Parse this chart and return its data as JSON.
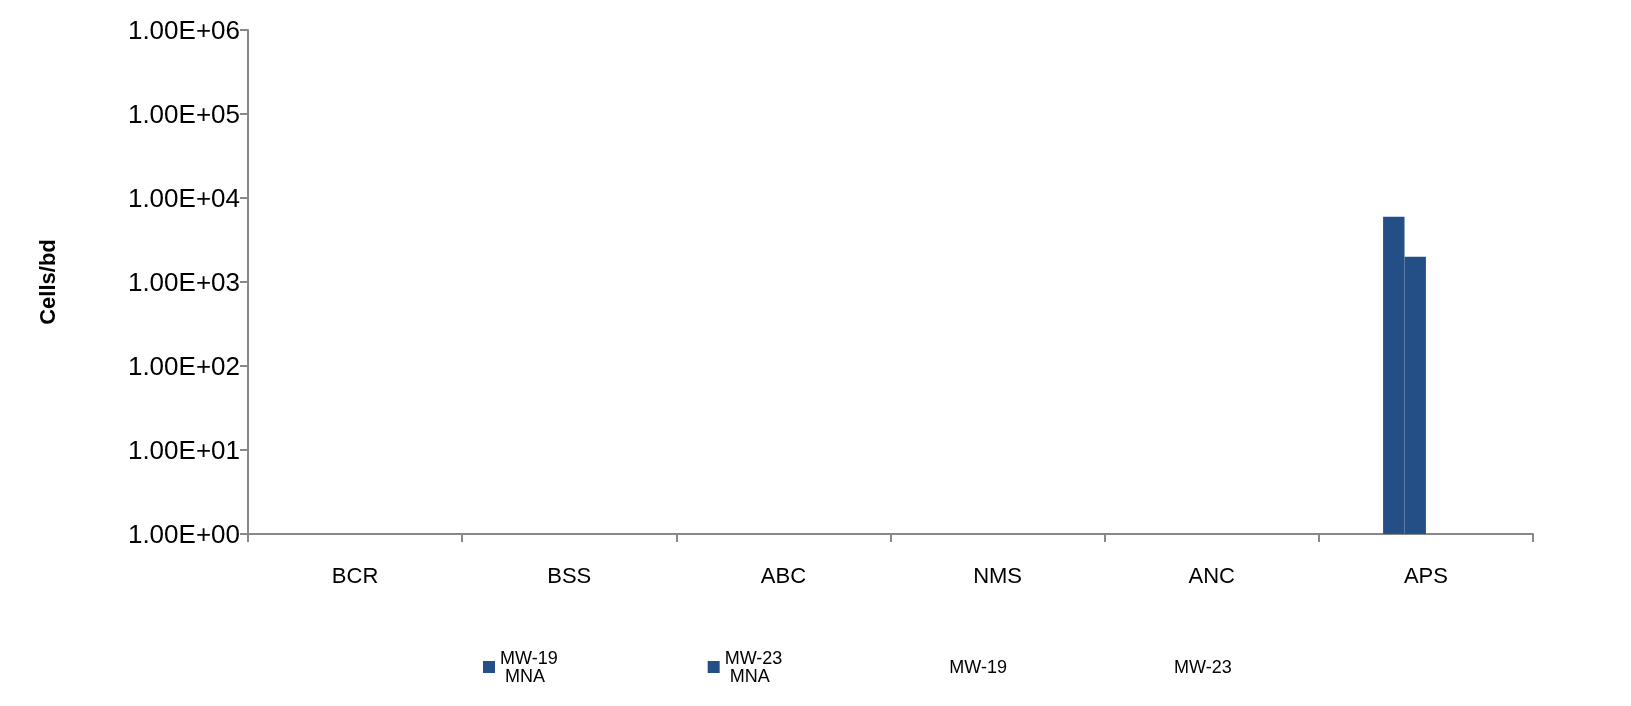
{
  "chart_data": {
    "type": "bar",
    "ylabel": "Cells/bd",
    "categories": [
      "BCR",
      "BSS",
      "ABC",
      "NMS",
      "ANC",
      "APS"
    ],
    "series": [
      {
        "name": "MW-19 MNA",
        "color": "#234f86",
        "values": [
          1,
          1,
          1,
          1,
          1,
          6000
        ]
      },
      {
        "name": "MW-23 MNA",
        "color": "#234f86",
        "values": [
          1,
          1,
          1,
          1,
          1,
          2000
        ]
      },
      {
        "name": "MW-19",
        "values": [
          null,
          null,
          null,
          null,
          null,
          null
        ]
      },
      {
        "name": "MW-23",
        "values": [
          null,
          null,
          null,
          null,
          null,
          null
        ]
      }
    ],
    "log": true,
    "ylim": [
      1,
      1000000
    ],
    "yticks": [
      {
        "value": 1,
        "label": "1.00E+00"
      },
      {
        "value": 10,
        "label": "1.00E+01"
      },
      {
        "value": 100,
        "label": "1.00E+02"
      },
      {
        "value": 1000,
        "label": "1.00E+03"
      },
      {
        "value": 10000,
        "label": "1.00E+04"
      },
      {
        "value": 100000,
        "label": "1.00E+05"
      },
      {
        "value": 1000000,
        "label": "1.00E+06"
      }
    ],
    "grid": false,
    "legend": "bottom"
  }
}
